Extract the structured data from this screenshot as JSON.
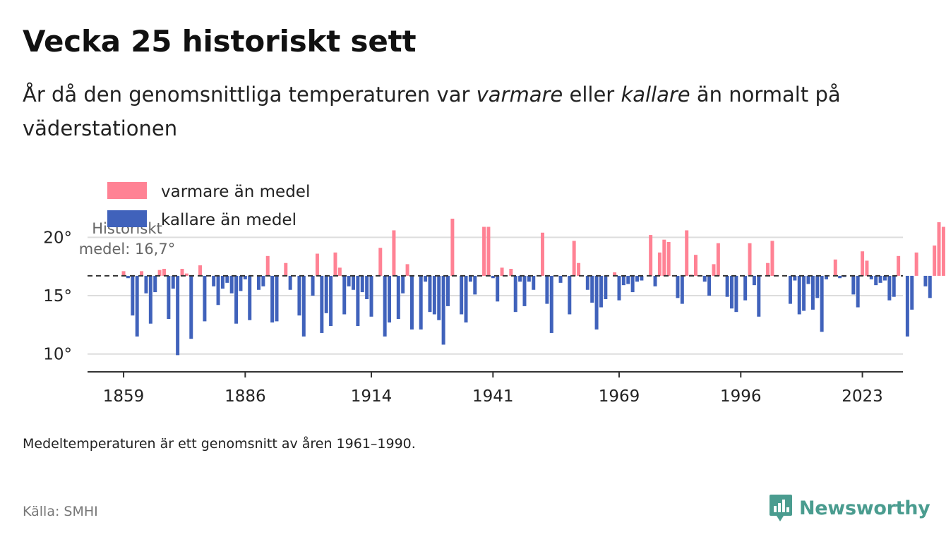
{
  "title": "Vecka 25 historiskt sett",
  "subtitle": {
    "part1": "År då den genomsnittliga temperaturen var ",
    "warm_word": "varmare",
    "part2": " eller ",
    "cold_word": "kallare",
    "part3": " än normalt på väderstationen"
  },
  "note": "Medeltemperaturen är ett genomsnitt av åren 1961–1990.",
  "source": "Källa: SMHI",
  "brand": {
    "name": "Newsworthy",
    "icon": "newsworthy-logo-icon"
  },
  "colors": {
    "warm": "#ff8294",
    "cold": "#4062bb",
    "grid": "#dddddd",
    "axis": "#333333",
    "brand": "#4a9c8f"
  },
  "chart_data": {
    "type": "bar",
    "baseline": 16.7,
    "baseline_label_line1": "Historiskt",
    "baseline_label_line2": "medel: 16,7°",
    "ylim": [
      9.8,
      22.2
    ],
    "xlim": [
      1851,
      2032
    ],
    "yticks": [
      10,
      15,
      20
    ],
    "ytick_labels": [
      "10°",
      "15°",
      "20°"
    ],
    "xticks": [
      1859,
      1886,
      1914,
      1941,
      1969,
      1996,
      2023
    ],
    "xtick_labels": [
      "1859",
      "1886",
      "1914",
      "1941",
      "1969",
      "1996",
      "2023"
    ],
    "legend": {
      "position": "top-left",
      "warm_label": "varmare än medel",
      "cold_label": "kallare än medel"
    },
    "start_year": 1859,
    "values": [
      17.1,
      16.5,
      13.3,
      11.5,
      17.1,
      15.2,
      12.6,
      15.3,
      17.2,
      17.3,
      13.0,
      15.6,
      9.9,
      17.3,
      16.9,
      11.3,
      16.7,
      17.6,
      12.8,
      16.7,
      15.8,
      14.2,
      15.6,
      16.1,
      15.2,
      12.6,
      15.4,
      16.4,
      12.9,
      16.7,
      15.5,
      15.8,
      18.4,
      12.7,
      12.8,
      16.7,
      17.8,
      15.5,
      16.7,
      13.3,
      11.5,
      16.7,
      15.0,
      18.6,
      11.8,
      13.5,
      12.4,
      18.7,
      17.4,
      13.4,
      15.8,
      15.5,
      12.4,
      15.3,
      14.7,
      13.2,
      16.7,
      19.1,
      11.5,
      12.7,
      20.6,
      13.0,
      15.2,
      17.7,
      12.1,
      16.7,
      12.1,
      16.2,
      13.6,
      13.4,
      12.9,
      10.8,
      14.1,
      21.6,
      16.7,
      13.4,
      12.7,
      16.2,
      15.1,
      16.7,
      20.9,
      20.9,
      16.5,
      14.5,
      17.4,
      16.7,
      17.3,
      13.6,
      16.2,
      14.1,
      16.2,
      15.5,
      16.7,
      20.4,
      14.3,
      11.8,
      16.7,
      16.1,
      16.7,
      13.4,
      19.7,
      17.8,
      16.7,
      15.5,
      14.4,
      12.1,
      14.0,
      14.7,
      16.7,
      17.0,
      14.6,
      15.9,
      16.0,
      15.3,
      16.2,
      16.3,
      16.7,
      20.2,
      15.8,
      18.7,
      19.8,
      19.6,
      16.7,
      14.8,
      14.3,
      20.6,
      16.8,
      18.5,
      16.7,
      16.2,
      15.0,
      17.7,
      19.5,
      16.7,
      14.9,
      13.9,
      13.6,
      16.7,
      14.6,
      19.5,
      15.9,
      13.2,
      16.7,
      17.8,
      19.7,
      16.7,
      16.7,
      16.7,
      14.3,
      16.3,
      13.4,
      13.7,
      16.0,
      13.8,
      14.8,
      11.9,
      16.4,
      16.7,
      18.1,
      16.5,
      16.6,
      16.7,
      15.1,
      14.0,
      18.8,
      18.0,
      16.4,
      15.9,
      16.1,
      16.3,
      14.6,
      14.9,
      18.4,
      16.7,
      11.5,
      13.8,
      18.7,
      16.7,
      15.8,
      14.8,
      19.3,
      21.3,
      20.9,
      18.8,
      20.8
    ]
  }
}
